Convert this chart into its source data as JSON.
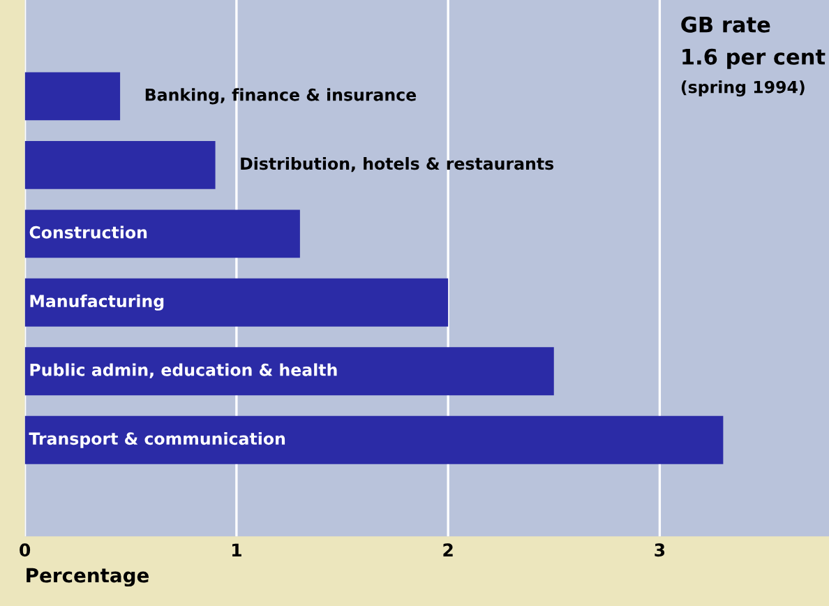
{
  "chart_data": {
    "type": "bar",
    "orientation": "horizontal",
    "title": "GB rate",
    "subtitle": "1.6 per cent",
    "annotations": [
      "(spring 1994)"
    ],
    "xlabel": "Percentage",
    "categories": [
      "Banking, finance & insurance",
      "Distribution, hotels & restaurants",
      "Construction",
      "Manufacturing",
      "Public admin, education & health",
      "Transport & communication"
    ],
    "values": [
      0.45,
      0.9,
      1.3,
      2.0,
      2.5,
      3.3
    ],
    "color": "#2b2ba6",
    "xlim": [
      0,
      3.8
    ],
    "xticks": [
      0,
      1,
      2,
      3
    ],
    "grid": "x",
    "legend": false
  }
}
